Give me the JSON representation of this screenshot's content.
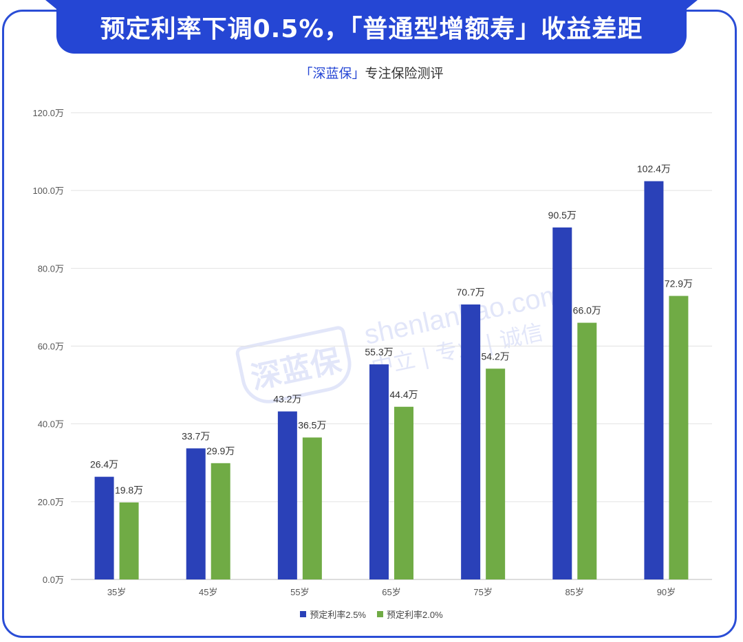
{
  "header": {
    "title": "预定利率下调0.5%，「普通型增额寿」收益差距"
  },
  "subtitle": {
    "brand": "「深蓝保」",
    "tagline": "专注保险测评"
  },
  "watermark": {
    "logo_text": "深蓝保",
    "url": "shenlanbao.com",
    "slogan": "中立 | 专业 | 诚信"
  },
  "colors": {
    "accent": "#2546d4",
    "series1": "#2a41b8",
    "series2": "#70ab45",
    "grid": "#e2e2e2"
  },
  "chart_data": {
    "type": "bar",
    "title": "预定利率下调0.5%，「普通型增额寿」收益差距",
    "categories": [
      "35岁",
      "45岁",
      "55岁",
      "65岁",
      "75岁",
      "85岁",
      "90岁"
    ],
    "series": [
      {
        "name": "预定利率2.5%",
        "values": [
          26.4,
          33.7,
          43.2,
          55.3,
          70.7,
          90.5,
          102.4
        ],
        "labels": [
          "26.4万",
          "33.7万",
          "43.2万",
          "55.3万",
          "70.7万",
          "90.5万",
          "102.4万"
        ]
      },
      {
        "name": "预定利率2.0%",
        "values": [
          19.8,
          29.9,
          36.5,
          44.4,
          54.2,
          66.0,
          72.9
        ],
        "labels": [
          "19.8万",
          "29.9万",
          "36.5万",
          "44.4万",
          "54.2万",
          "66.0万",
          "72.9万"
        ]
      }
    ],
    "ylim": [
      0,
      120
    ],
    "yticks": [
      "0.0万",
      "20.0万",
      "40.0万",
      "60.0万",
      "80.0万",
      "100.0万",
      "120.0万"
    ],
    "ytick_values": [
      0,
      20,
      40,
      60,
      80,
      100,
      120
    ],
    "xlabel": "",
    "ylabel": "",
    "grid": true,
    "legend": "bottom-center"
  }
}
